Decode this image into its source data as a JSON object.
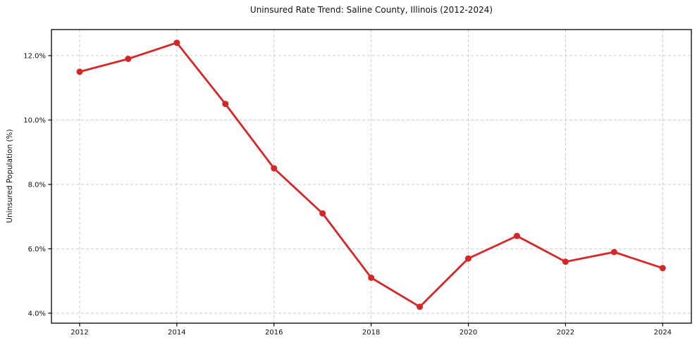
{
  "figure": {
    "background_color": "#ffffff"
  },
  "chart_data": {
    "type": "line",
    "title": "Uninsured Rate Trend: Saline County, Illinois (2012-2024)",
    "xlabel": "",
    "ylabel": "Uninsured Population (%)",
    "x": [
      2012,
      2013,
      2014,
      2015,
      2016,
      2017,
      2018,
      2019,
      2020,
      2021,
      2022,
      2023,
      2024
    ],
    "series": [
      {
        "name": "Uninsured rate",
        "values": [
          11.5,
          11.9,
          12.4,
          10.5,
          8.5,
          7.1,
          5.1,
          4.2,
          5.7,
          6.4,
          5.6,
          5.9,
          5.4
        ]
      }
    ],
    "xticks": {
      "values": [
        2012,
        2014,
        2016,
        2018,
        2020,
        2022,
        2024
      ],
      "labels": [
        "2012",
        "2014",
        "2016",
        "2018",
        "2020",
        "2022",
        "2024"
      ]
    },
    "yticks": {
      "values": [
        4,
        6,
        8,
        10,
        12
      ],
      "labels": [
        "4.0%",
        "6.0%",
        "8.0%",
        "10.0%",
        "12.0%"
      ]
    },
    "xlim": [
      2011.42,
      2024.59
    ],
    "ylim": [
      3.69,
      12.81
    ],
    "grid": true,
    "legend": "none",
    "colors": {
      "line": "#d62728",
      "marker": "#d62728",
      "grid": "#cccccc",
      "spine": "#000000",
      "tick_text": "#111111"
    },
    "marker": "circle"
  }
}
